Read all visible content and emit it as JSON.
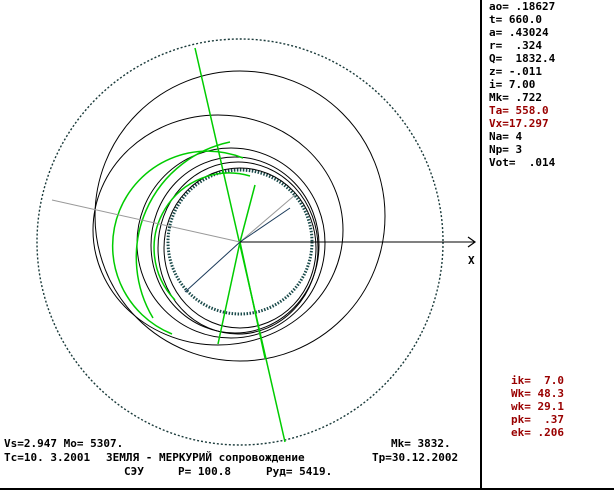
{
  "window": {
    "axis_label": "X"
  },
  "params_top": [
    {
      "text": "ao= .18627",
      "highlight": false
    },
    {
      "text": "t= 660.0",
      "highlight": false
    },
    {
      "text": "a= .43024",
      "highlight": false
    },
    {
      "text": "r=  .324",
      "highlight": false
    },
    {
      "text": "Q=  1832.4",
      "highlight": false
    },
    {
      "text": "z= -.011",
      "highlight": false
    },
    {
      "text": "i= 7.00",
      "highlight": false
    },
    {
      "text": "Mk= .722",
      "highlight": false
    },
    {
      "text": "Ta= 558.0",
      "highlight": true
    },
    {
      "text": "Vx=17.297",
      "highlight": true
    },
    {
      "text": "Na= 4",
      "highlight": false
    },
    {
      "text": "Np= 3",
      "highlight": false
    },
    {
      "text": "Vot=  .014",
      "highlight": false
    }
  ],
  "params_bottom": [
    {
      "text": "ik=  7.0"
    },
    {
      "text": "Wk= 48.3"
    },
    {
      "text": "wk= 29.1"
    },
    {
      "text": "pk=  .37"
    },
    {
      "text": "ek= .206"
    }
  ],
  "status": {
    "line1_left": "Vs=2.947 Mo= 5307.",
    "line1_right": "Mk= 3832.",
    "line2_left": "Tc=10. 3.2001",
    "line2_mission": "ЗЕМЛЯ - МЕРКУРИЙ сопровождение",
    "line2_right": "Tp=30.12.2002",
    "line3_engine": "СЭУ",
    "line3_power": "P= 100.8",
    "line3_fuel": "Pуд= 5419."
  },
  "colors": {
    "orbit": "#000000",
    "trajectory": "#00cc00",
    "planet_marker": "#006666",
    "gray_line": "#999999",
    "highlight_text": "#990000"
  },
  "icons": {
    "axis_arrow": "arrow-right-icon"
  }
}
